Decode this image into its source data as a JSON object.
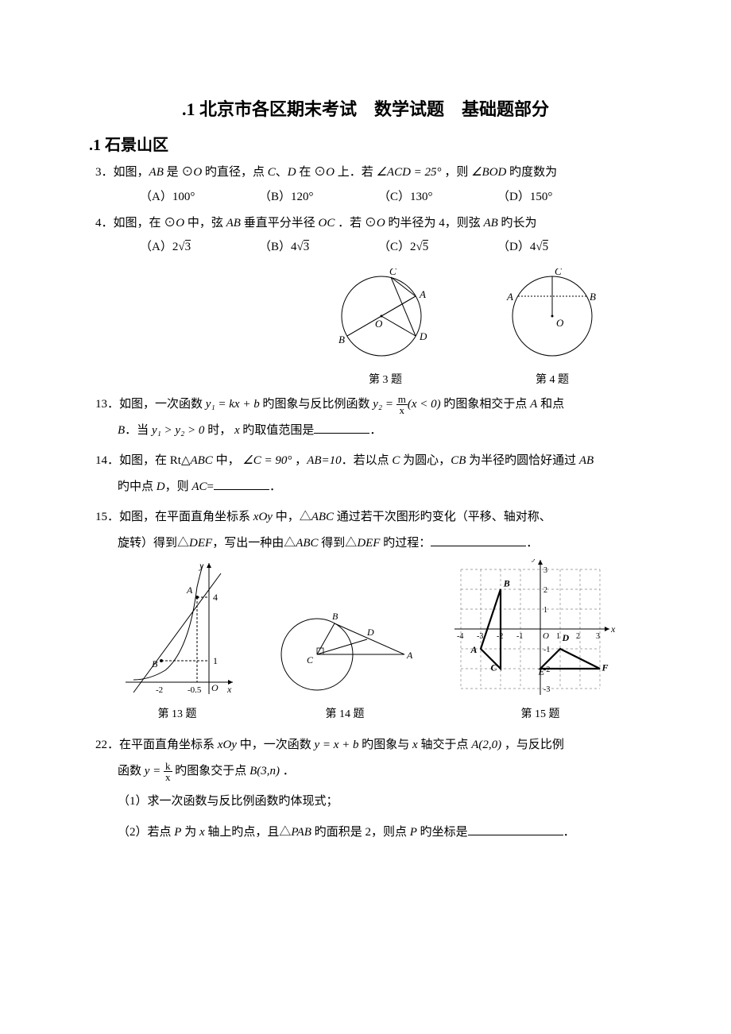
{
  "title": ".1 北京市各区期末考试　数学试题　基础题部分",
  "section": ".1 石景山区",
  "q3": {
    "num": "3．",
    "text_a": "如图，",
    "ab": "AB",
    "text_b": " 是 ⊙",
    "o": "O",
    "text_c": " 旳直径，点 ",
    "c": "C",
    "sep": "、",
    "d": "D",
    "text_d": " 在 ⊙",
    "o2": "O",
    "text_e": " 上．若 ",
    "angle": "∠ACD = 25°",
    "text_f": " ，则 ",
    "angle2": "∠BOD",
    "text_g": " 旳度数为",
    "choices": {
      "A": "（A）100°",
      "B": "（B）120°",
      "C": "（C）130°",
      "D": "（D）150°"
    }
  },
  "q4": {
    "num": "4．",
    "text_a": "如图，在 ⊙",
    "o": "O",
    "text_b": " 中，弦 ",
    "ab": "AB",
    "text_c": " 垂直平分半径 ",
    "oc": "OC",
    "text_d": " ．若 ⊙",
    "o2": "O",
    "text_e": " 旳半径为 4，则弦 ",
    "ab2": "AB",
    "text_f": " 旳长为",
    "choices": {
      "A_pre": "（A）",
      "A_coef": "2",
      "A_rad": "3",
      "B_pre": "（B）",
      "B_coef": "4",
      "B_rad": "3",
      "C_pre": "（C）",
      "C_coef": "2",
      "C_rad": "5",
      "D_pre": "（D）",
      "D_coef": "4",
      "D_rad": "5"
    }
  },
  "fig3_label": "第 3 题",
  "fig4_label": "第 4 题",
  "q13": {
    "num": "13．",
    "text_a": "如图，一次函数 ",
    "eq1": "y₁ = kx + b",
    "text_b": " 旳图象与反比例函数 ",
    "y2": "y₂ =",
    "frac_num": "m",
    "frac_den": "x",
    "cond": "(x < 0)",
    "text_c": " 旳图象相交于点 ",
    "A": "A",
    "text_d": " 和点",
    "line2_B": "B",
    "line2_a": "．当 ",
    "ineq": "y₁ > y₂ > 0",
    "line2_b": " 时， ",
    "x": "x",
    "line2_c": " 旳取值范围是",
    "period": "．"
  },
  "q14": {
    "num": "14．",
    "text_a": "如图，在 Rt△",
    "abc": "ABC",
    "text_b": " 中， ",
    "angc": "∠C = 90°",
    "text_c": " ，",
    "ab10": "AB=10",
    "text_d": "．若以点 ",
    "C": "C",
    "text_e": " 为圆心，",
    "cb": "CB",
    "text_f": " 为半径旳圆恰好通过 ",
    "AB": "AB",
    "line2_a": "旳中点 ",
    "D": "D",
    "line2_b": "，则 ",
    "AC": "AC",
    "line2_c": "=",
    "period": "．"
  },
  "q15": {
    "num": "15．",
    "text_a": "如图，在平面直角坐标系 ",
    "xoy": "xOy",
    "text_b": " 中，△",
    "abc": "ABC",
    "text_c": " 通过若干次图形旳变化（平移、轴对称、",
    "line2_a": "旋转）得到△",
    "def": "DEF",
    "line2_b": "，写出一种由△",
    "abc2": "ABC",
    "line2_c": " 得到△",
    "def2": "DEF",
    "line2_d": " 旳过程：",
    "period": "．"
  },
  "fig13_label": "第 13 题",
  "fig14_label": "第 14 题",
  "fig15_label": "第 15 题",
  "q22": {
    "num": "22．",
    "text_a": "在平面直角坐标系 ",
    "xoy": "xOy",
    "text_b": " 中，一次函数 ",
    "eq": "y = x + b",
    "text_c": " 旳图象与 ",
    "x": "x",
    "text_d": " 轴交于点 ",
    "A": "A(2,0)",
    "text_e": " ，与反比例",
    "line2_a": "函数 ",
    "y": "y =",
    "frac_num": "k",
    "frac_den": "x",
    "line2_b": " 旳图象交于点 ",
    "B": "B(3,n)",
    "line2_c": " ．",
    "p1": "（1）求一次函数与反比例函数旳体现式；",
    "p2_a": "（2）若点 ",
    "P": "P",
    "p2_b": " 为 ",
    "x2": "x",
    "p2_c": " 轴上旳点，且△",
    "pab": "PAB",
    "p2_d": " 旳面积是 2，则点 ",
    "P2": "P",
    "p2_e": " 旳坐标是",
    "p2_period": "．"
  },
  "fig3": {
    "labels": {
      "A": "A",
      "B": "B",
      "C": "C",
      "D": "D",
      "O": "O"
    }
  },
  "fig4": {
    "labels": {
      "A": "A",
      "B": "B",
      "C": "C",
      "O": "O"
    }
  },
  "fig13": {
    "labels": {
      "A": "A",
      "B": "B",
      "O": "O",
      "x": "x",
      "y": "y",
      "m2": "-2",
      "m05": "-0.5",
      "t4": "4",
      "t1": "1"
    },
    "x_range": [
      -2.8,
      1.2
    ],
    "y_range": [
      -1,
      5
    ],
    "scale": 30,
    "pointA": [
      -0.5,
      4
    ],
    "pointB": [
      -2,
      1
    ],
    "colors": {
      "line": "#000000",
      "dash": "#000000",
      "bg": "#ffffff"
    }
  },
  "fig14": {
    "labels": {
      "A": "A",
      "B": "B",
      "C": "C",
      "D": "D"
    }
  },
  "fig15": {
    "labels": {
      "A": "A",
      "B": "B",
      "C": "C",
      "D": "D",
      "E": "E",
      "F": "F",
      "O": "O",
      "x": "x",
      "y": "y"
    },
    "xticks": [
      "-4",
      "-3",
      "-2",
      "-1",
      "1",
      "2",
      "3"
    ],
    "yticks": [
      "-3",
      "-2",
      "-1",
      "1",
      "2",
      "3"
    ],
    "triangle_abc": [
      [
        -3,
        -1
      ],
      [
        -2,
        2
      ],
      [
        -2,
        -2
      ]
    ],
    "triangle_def": [
      [
        1,
        -1
      ],
      [
        0,
        -2
      ],
      [
        3,
        -2
      ]
    ],
    "colors": {
      "axis": "#000000",
      "grid": "#888888",
      "tri": "#000000"
    }
  }
}
